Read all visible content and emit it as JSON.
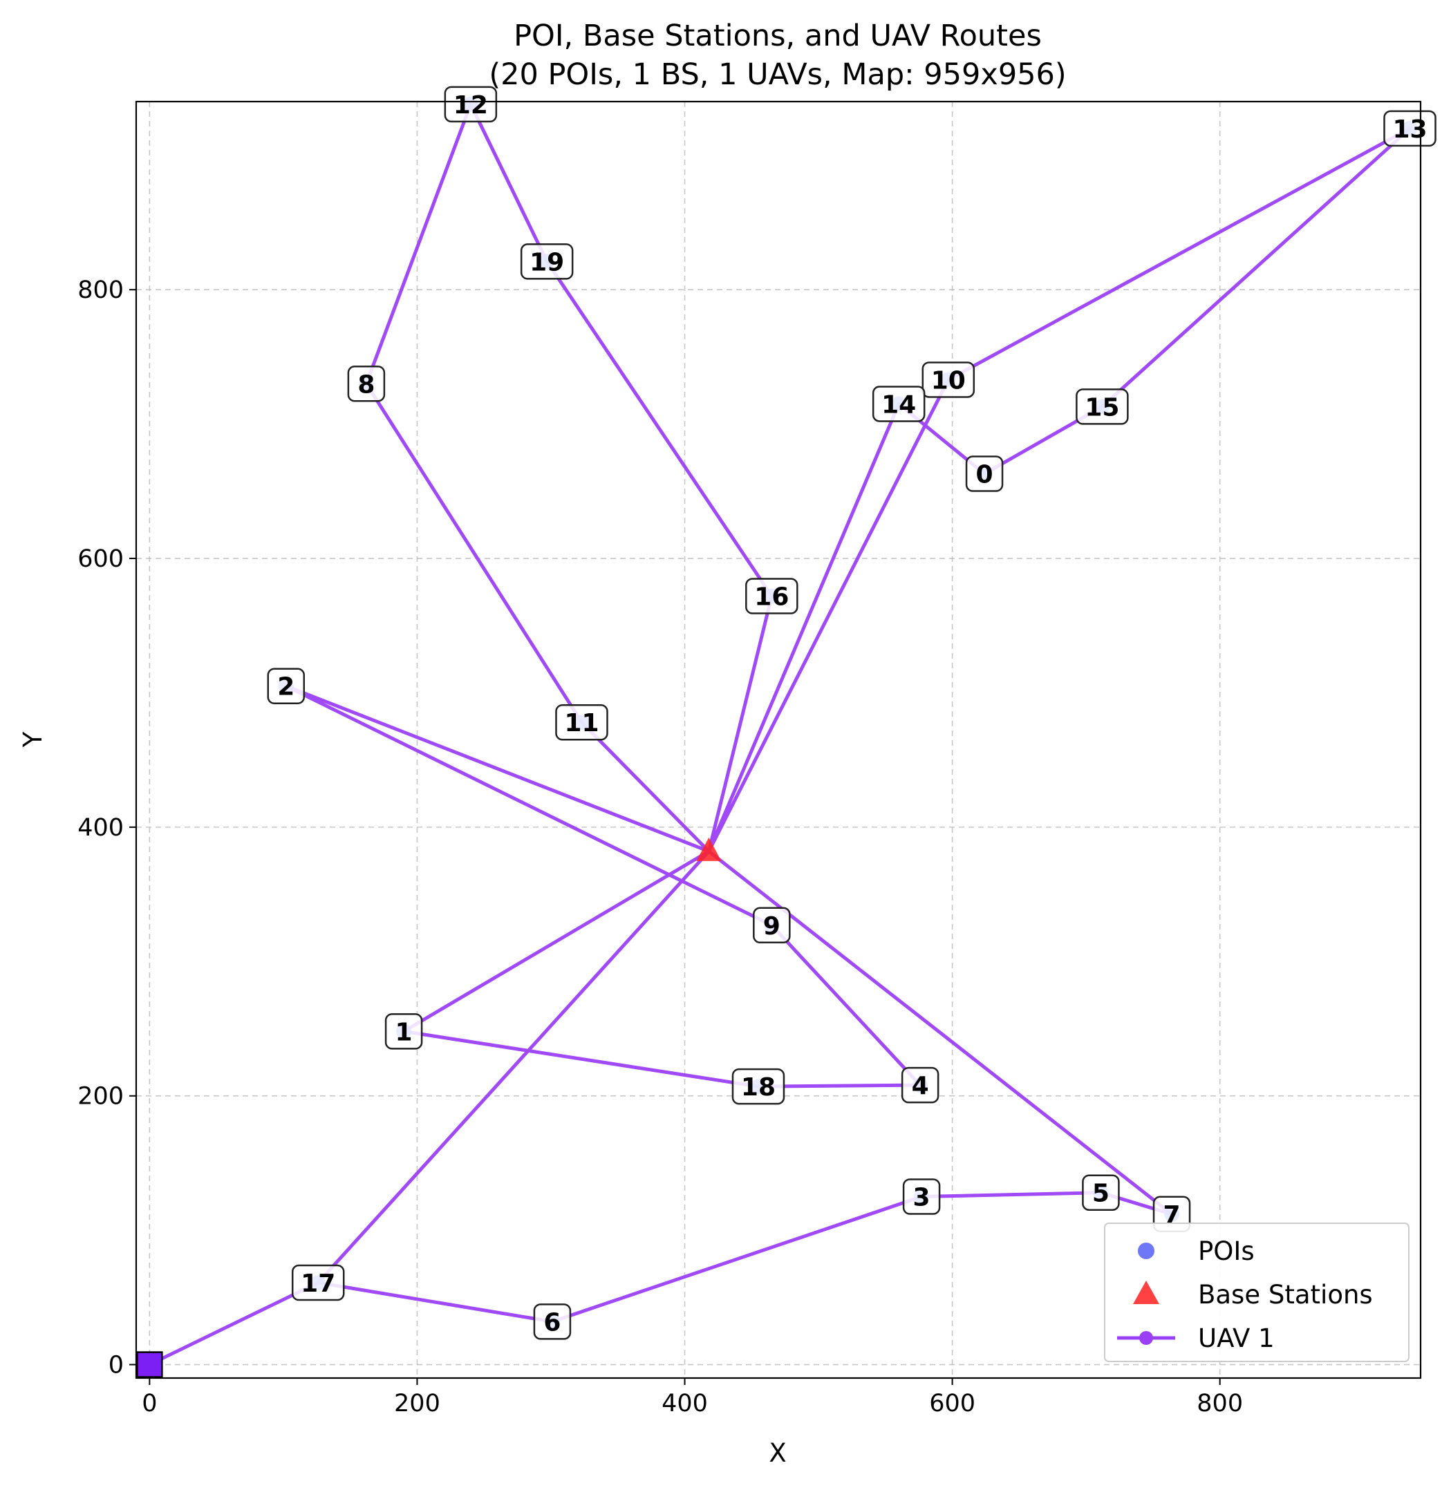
{
  "chart_data": {
    "type": "scatter",
    "title": "POI, Base Stations, and UAV Routes",
    "subtitle": "(20 POIs, 1 BS, 1 UAVs, Map: 959x956)",
    "xlabel": "X",
    "ylabel": "Y",
    "xlim": [
      -10,
      950
    ],
    "ylim": [
      -10,
      940
    ],
    "xticks": [
      0,
      200,
      400,
      600,
      800
    ],
    "yticks": [
      0,
      200,
      400,
      600,
      800
    ],
    "grid": true,
    "legend_position": "lower-right",
    "legend": [
      {
        "label": "POIs",
        "marker": "circle",
        "color": "#4a55f5"
      },
      {
        "label": "Base Stations",
        "marker": "triangle",
        "color": "#ff2020"
      },
      {
        "label": "UAV 1",
        "marker": "line-circle",
        "color": "#9b3ff5"
      }
    ],
    "pois": [
      {
        "id": "0",
        "x": 624,
        "y": 663
      },
      {
        "id": "1",
        "x": 190,
        "y": 248
      },
      {
        "id": "2",
        "x": 102,
        "y": 505
      },
      {
        "id": "3",
        "x": 577,
        "y": 125
      },
      {
        "id": "4",
        "x": 576,
        "y": 208
      },
      {
        "id": "5",
        "x": 711,
        "y": 128
      },
      {
        "id": "6",
        "x": 301,
        "y": 32
      },
      {
        "id": "7",
        "x": 764,
        "y": 112
      },
      {
        "id": "8",
        "x": 162,
        "y": 730
      },
      {
        "id": "9",
        "x": 465,
        "y": 327
      },
      {
        "id": "10",
        "x": 597,
        "y": 733
      },
      {
        "id": "11",
        "x": 323,
        "y": 478
      },
      {
        "id": "12",
        "x": 240,
        "y": 938
      },
      {
        "id": "13",
        "x": 942,
        "y": 920
      },
      {
        "id": "14",
        "x": 560,
        "y": 715
      },
      {
        "id": "15",
        "x": 712,
        "y": 713
      },
      {
        "id": "16",
        "x": 465,
        "y": 572
      },
      {
        "id": "17",
        "x": 126,
        "y": 61
      },
      {
        "id": "18",
        "x": 455,
        "y": 207
      },
      {
        "id": "19",
        "x": 297,
        "y": 821
      }
    ],
    "base_stations": [
      {
        "x": 418,
        "y": 382
      }
    ],
    "depot": {
      "x": 0,
      "y": 0
    },
    "series": [
      {
        "name": "UAV 1",
        "color": "#9b3ff5",
        "route": [
          [
            0,
            0
          ],
          [
            126,
            61
          ],
          [
            301,
            32
          ],
          [
            577,
            125
          ],
          [
            711,
            128
          ],
          [
            764,
            112
          ],
          [
            418,
            382
          ],
          [
            102,
            505
          ],
          [
            465,
            327
          ],
          [
            576,
            208
          ],
          [
            455,
            207
          ],
          [
            190,
            248
          ],
          [
            418,
            382
          ],
          [
            597,
            733
          ],
          [
            942,
            920
          ],
          [
            712,
            713
          ],
          [
            624,
            663
          ],
          [
            560,
            715
          ],
          [
            418,
            382
          ],
          [
            465,
            572
          ],
          [
            297,
            821
          ],
          [
            240,
            938
          ],
          [
            162,
            730
          ],
          [
            323,
            478
          ],
          [
            418,
            382
          ],
          [
            126,
            61
          ]
        ]
      }
    ]
  }
}
